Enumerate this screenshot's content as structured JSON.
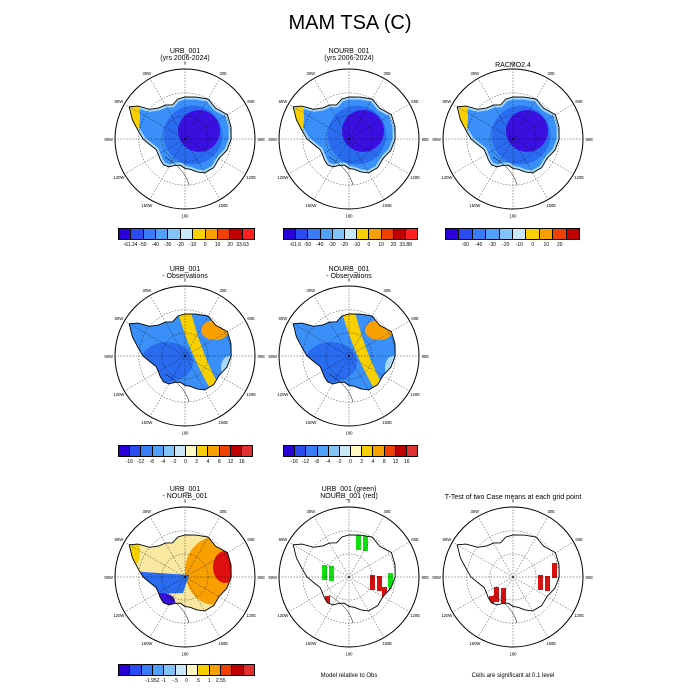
{
  "title": "MAM TSA (C)",
  "chart_data": [
    {
      "type": "heatmap",
      "title": "URB_001",
      "subtitle": "(yrs 2006-2024)",
      "colorbar": {
        "labels": [
          "-61.24",
          "-50",
          "-40",
          "-30",
          "-20",
          "-10",
          "0",
          "10",
          "20",
          "33.63"
        ],
        "colors": [
          "#2a00d8",
          "#2a4bf0",
          "#3a7cf8",
          "#4fa0f8",
          "#82c4f8",
          "#c8e8f8",
          "#f8d000",
          "#f8a000",
          "#f04000",
          "#c00000",
          "#ff2020"
        ]
      }
    },
    {
      "type": "heatmap",
      "title": "NOURB_001",
      "subtitle": "(yrs 2006-2024)",
      "colorbar": {
        "labels": [
          "-61.6",
          "-50",
          "-40",
          "-30",
          "-20",
          "-10",
          "0",
          "10",
          "20",
          "33.88"
        ],
        "colors": [
          "#2a00d8",
          "#2a4bf0",
          "#3a7cf8",
          "#4fa0f8",
          "#82c4f8",
          "#c8e8f8",
          "#f8d000",
          "#f8a000",
          "#f04000",
          "#c00000",
          "#ff2020"
        ]
      }
    },
    {
      "type": "heatmap",
      "title": "RACMO2.4",
      "subtitle": "",
      "colorbar": {
        "labels": [
          "-50",
          "-40",
          "-30",
          "-20",
          "-10",
          "0",
          "10",
          "20"
        ],
        "colors": [
          "#2a00d8",
          "#2a4bf0",
          "#3a7cf8",
          "#4fa0f8",
          "#82c4f8",
          "#c8e8f8",
          "#f8d000",
          "#f8a000",
          "#f04000",
          "#c00000"
        ]
      }
    },
    {
      "type": "heatmap",
      "title": "URB_001",
      "subtitle": " - Observations",
      "colorbar": {
        "labels": [
          "-16",
          "-12",
          "-8",
          "-4",
          "-2",
          "0",
          "2",
          "4",
          "8",
          "12",
          "16"
        ],
        "colors": [
          "#2a00d8",
          "#2a4bf0",
          "#3a7cf8",
          "#4fa0f8",
          "#82c4f8",
          "#c8e8f8",
          "#fff8c0",
          "#f8d000",
          "#f8a000",
          "#f04000",
          "#c00000",
          "#e03030"
        ]
      }
    },
    {
      "type": "heatmap",
      "title": "NOURB_001",
      "subtitle": " - Observations",
      "colorbar": {
        "labels": [
          "-16",
          "-12",
          "-8",
          "-4",
          "-2",
          "0",
          "2",
          "4",
          "8",
          "12",
          "16"
        ],
        "colors": [
          "#2a00d8",
          "#2a4bf0",
          "#3a7cf8",
          "#4fa0f8",
          "#82c4f8",
          "#c8e8f8",
          "#fff8c0",
          "#f8d000",
          "#f8a000",
          "#f04000",
          "#c00000",
          "#e03030"
        ]
      }
    },
    {
      "type": "heatmap",
      "title": "URB_001",
      "subtitle": " - NOURB_001",
      "colorbar": {
        "labels": [
          "-1.952",
          "-1",
          "-.5",
          "0",
          ".5",
          "1",
          "2.55"
        ],
        "colors": [
          "#2a00d8",
          "#2a4bf0",
          "#3a7cf8",
          "#4fa0f8",
          "#82c4f8",
          "#c8e8f8",
          "#fff8c0",
          "#f8d000",
          "#f8a000",
          "#f04000",
          "#c00000",
          "#e03030"
        ]
      }
    },
    {
      "type": "heatmap",
      "title": "URB_001 (green)",
      "subtitle": "NOURB_001 (red)",
      "note": "Model relative to Obs"
    },
    {
      "type": "heatmap",
      "title": "T-Test of two Case means at each grid point",
      "subtitle": "",
      "note": "Cells are significant at 0.1 level"
    }
  ],
  "map": {
    "lon_labels": [
      "0",
      "30E",
      "60E",
      "90E",
      "120E",
      "150E",
      "180",
      "150W",
      "120W",
      "90W",
      "60W",
      "30W"
    ],
    "colors": {
      "ocean": "#ffffff",
      "cold_deep": "#3a10e0",
      "cold": "#2a6cf0",
      "mid": "#3a90f8",
      "light": "#a8d8f8",
      "warm": "#f8d000",
      "orange": "#f8a000",
      "red": "#e01010",
      "green": "#10e010",
      "sig_red": "#d81010"
    }
  }
}
